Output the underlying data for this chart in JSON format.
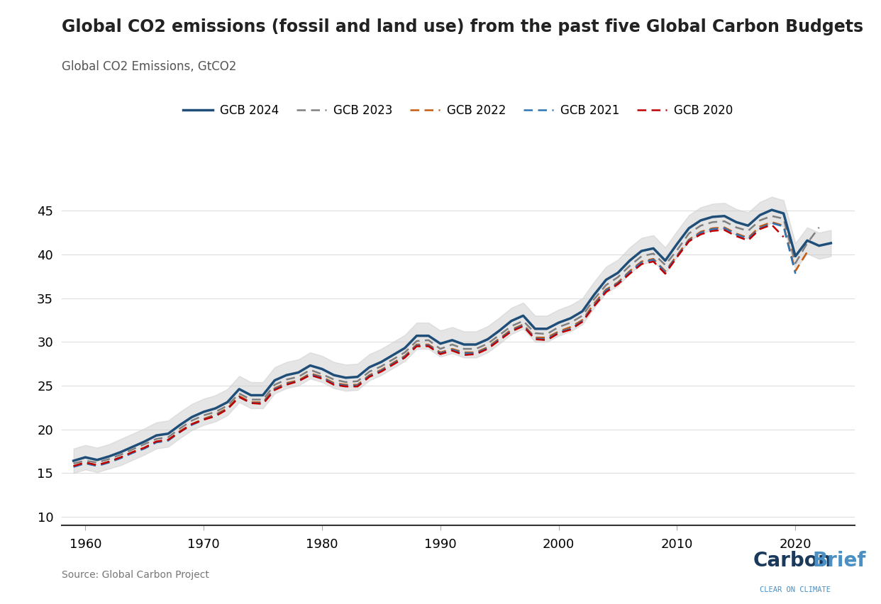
{
  "title": "Global CO2 emissions (fossil and land use) from the past five Global Carbon Budgets",
  "subtitle": "Global CO2 Emissions, GtCO2",
  "source": "Source: Global Carbon Project",
  "xlim": [
    1958,
    2025
  ],
  "ylim": [
    9,
    47
  ],
  "yticks": [
    10,
    15,
    20,
    25,
    30,
    35,
    40,
    45
  ],
  "xticks": [
    1960,
    1970,
    1980,
    1990,
    2000,
    2010,
    2020
  ],
  "background_color": "#ffffff",
  "gcb2024": {
    "label": "GCB 2024",
    "color": "#1f4e79",
    "linewidth": 2.5,
    "linestyle": "solid",
    "years": [
      1959,
      1960,
      1961,
      1962,
      1963,
      1964,
      1965,
      1966,
      1967,
      1968,
      1969,
      1970,
      1971,
      1972,
      1973,
      1974,
      1975,
      1976,
      1977,
      1978,
      1979,
      1980,
      1981,
      1982,
      1983,
      1984,
      1985,
      1986,
      1987,
      1988,
      1989,
      1990,
      1991,
      1992,
      1993,
      1994,
      1995,
      1996,
      1997,
      1998,
      1999,
      2000,
      2001,
      2002,
      2003,
      2004,
      2005,
      2006,
      2007,
      2008,
      2009,
      2010,
      2011,
      2012,
      2013,
      2014,
      2015,
      2016,
      2017,
      2018,
      2019,
      2020,
      2021,
      2022,
      2023
    ],
    "values": [
      16.4,
      16.8,
      16.5,
      16.9,
      17.4,
      18.0,
      18.6,
      19.3,
      19.5,
      20.5,
      21.4,
      22.0,
      22.4,
      23.1,
      24.6,
      23.9,
      23.9,
      25.6,
      26.2,
      26.5,
      27.3,
      26.9,
      26.2,
      25.9,
      26.0,
      27.1,
      27.7,
      28.5,
      29.3,
      30.7,
      30.7,
      29.8,
      30.2,
      29.7,
      29.7,
      30.3,
      31.3,
      32.4,
      33.0,
      31.5,
      31.5,
      32.2,
      32.7,
      33.5,
      35.4,
      37.1,
      37.9,
      39.3,
      40.4,
      40.7,
      39.3,
      41.2,
      43.0,
      43.9,
      44.3,
      44.4,
      43.7,
      43.3,
      44.5,
      45.1,
      44.7,
      39.8,
      41.6,
      41.0,
      41.3
    ],
    "upper": [
      17.8,
      18.2,
      17.9,
      18.3,
      18.9,
      19.5,
      20.1,
      20.8,
      21.0,
      22.0,
      22.9,
      23.5,
      23.9,
      24.6,
      26.1,
      25.4,
      25.4,
      27.1,
      27.7,
      28.0,
      28.8,
      28.4,
      27.7,
      27.4,
      27.5,
      28.6,
      29.2,
      30.0,
      30.8,
      32.2,
      32.2,
      31.3,
      31.7,
      31.2,
      31.2,
      31.8,
      32.8,
      33.9,
      34.5,
      33.0,
      33.0,
      33.7,
      34.2,
      35.0,
      36.9,
      38.6,
      39.4,
      40.8,
      41.9,
      42.2,
      40.8,
      42.7,
      44.5,
      45.4,
      45.8,
      45.9,
      45.2,
      44.8,
      46.0,
      46.6,
      46.2,
      41.3,
      43.1,
      42.5,
      42.8
    ],
    "lower": [
      15.0,
      15.4,
      15.1,
      15.5,
      15.9,
      16.5,
      17.1,
      17.8,
      18.0,
      19.0,
      19.9,
      20.5,
      20.9,
      21.6,
      23.1,
      22.4,
      22.4,
      24.1,
      24.7,
      25.0,
      25.8,
      25.4,
      24.7,
      24.4,
      24.5,
      25.6,
      26.2,
      27.0,
      27.8,
      29.2,
      29.2,
      28.3,
      28.7,
      28.2,
      28.2,
      28.8,
      29.8,
      30.9,
      31.5,
      30.0,
      30.0,
      30.7,
      31.2,
      32.0,
      33.9,
      35.6,
      36.4,
      37.8,
      38.9,
      39.2,
      37.8,
      39.7,
      41.5,
      42.4,
      42.8,
      42.9,
      42.2,
      41.8,
      43.0,
      43.6,
      43.2,
      38.3,
      40.1,
      39.5,
      39.8
    ]
  },
  "gcb2023": {
    "label": "GCB 2023",
    "color": "#808080",
    "linewidth": 1.8,
    "linestyle": "dashed",
    "years": [
      1959,
      1960,
      1961,
      1962,
      1963,
      1964,
      1965,
      1966,
      1967,
      1968,
      1969,
      1970,
      1971,
      1972,
      1973,
      1974,
      1975,
      1976,
      1977,
      1978,
      1979,
      1980,
      1981,
      1982,
      1983,
      1984,
      1985,
      1986,
      1987,
      1988,
      1989,
      1990,
      1991,
      1992,
      1993,
      1994,
      1995,
      1996,
      1997,
      1998,
      1999,
      2000,
      2001,
      2002,
      2003,
      2004,
      2005,
      2006,
      2007,
      2008,
      2009,
      2010,
      2011,
      2012,
      2013,
      2014,
      2015,
      2016,
      2017,
      2018,
      2019,
      2020,
      2021,
      2022
    ],
    "values": [
      16.1,
      16.4,
      16.2,
      16.6,
      17.1,
      17.7,
      18.3,
      18.9,
      19.1,
      20.1,
      21.0,
      21.6,
      22.0,
      22.7,
      24.1,
      23.4,
      23.4,
      25.1,
      25.7,
      26.0,
      26.8,
      26.3,
      25.7,
      25.4,
      25.5,
      26.6,
      27.2,
      28.0,
      28.8,
      30.1,
      30.2,
      29.2,
      29.7,
      29.2,
      29.2,
      29.8,
      30.8,
      31.8,
      32.4,
      31.0,
      30.9,
      31.7,
      32.2,
      33.0,
      34.9,
      36.5,
      37.4,
      38.7,
      39.8,
      40.1,
      38.8,
      40.5,
      42.4,
      43.3,
      43.7,
      43.8,
      43.1,
      42.7,
      43.9,
      44.4,
      44.1,
      39.0,
      41.3,
      43.1
    ]
  },
  "gcb2022": {
    "label": "GCB 2022",
    "color": "#c55a11",
    "linewidth": 1.8,
    "linestyle": "dashed",
    "years": [
      1959,
      1960,
      1961,
      1962,
      1963,
      1964,
      1965,
      1966,
      1967,
      1968,
      1969,
      1970,
      1971,
      1972,
      1973,
      1974,
      1975,
      1976,
      1977,
      1978,
      1979,
      1980,
      1981,
      1982,
      1983,
      1984,
      1985,
      1986,
      1987,
      1988,
      1989,
      1990,
      1991,
      1992,
      1993,
      1994,
      1995,
      1996,
      1997,
      1998,
      1999,
      2000,
      2001,
      2002,
      2003,
      2004,
      2005,
      2006,
      2007,
      2008,
      2009,
      2010,
      2011,
      2012,
      2013,
      2014,
      2015,
      2016,
      2017,
      2018,
      2019,
      2020,
      2021
    ],
    "values": [
      15.8,
      16.2,
      15.9,
      16.3,
      16.8,
      17.4,
      17.9,
      18.6,
      18.8,
      19.8,
      20.6,
      21.2,
      21.7,
      22.4,
      23.8,
      23.1,
      23.1,
      24.7,
      25.3,
      25.6,
      26.4,
      26.0,
      25.3,
      25.1,
      25.1,
      26.2,
      26.8,
      27.6,
      28.4,
      29.7,
      29.7,
      28.8,
      29.2,
      28.8,
      28.8,
      29.4,
      30.4,
      31.4,
      32.0,
      30.5,
      30.5,
      31.2,
      31.7,
      32.5,
      34.4,
      36.0,
      36.8,
      38.1,
      39.2,
      39.5,
      38.1,
      39.9,
      41.7,
      42.6,
      43.0,
      43.1,
      42.4,
      41.9,
      43.2,
      43.7,
      43.3,
      38.1,
      40.3
    ]
  },
  "gcb2021": {
    "label": "GCB 2021",
    "color": "#2e75b6",
    "linewidth": 1.8,
    "linestyle": "dashed",
    "years": [
      1959,
      1960,
      1961,
      1962,
      1963,
      1964,
      1965,
      1966,
      1967,
      1968,
      1969,
      1970,
      1971,
      1972,
      1973,
      1974,
      1975,
      1976,
      1977,
      1978,
      1979,
      1980,
      1981,
      1982,
      1983,
      1984,
      1985,
      1986,
      1987,
      1988,
      1989,
      1990,
      1991,
      1992,
      1993,
      1994,
      1995,
      1996,
      1997,
      1998,
      1999,
      2000,
      2001,
      2002,
      2003,
      2004,
      2005,
      2006,
      2007,
      2008,
      2009,
      2010,
      2011,
      2012,
      2013,
      2014,
      2015,
      2016,
      2017,
      2018,
      2019,
      2020
    ],
    "values": [
      15.7,
      16.1,
      15.8,
      16.2,
      16.7,
      17.3,
      17.8,
      18.5,
      18.7,
      19.7,
      20.5,
      21.1,
      21.6,
      22.3,
      23.7,
      23.0,
      23.0,
      24.6,
      25.2,
      25.5,
      26.3,
      25.9,
      25.2,
      25.0,
      25.0,
      26.1,
      26.7,
      27.5,
      28.3,
      29.6,
      29.6,
      28.7,
      29.1,
      28.7,
      28.7,
      29.3,
      30.3,
      31.3,
      31.9,
      30.4,
      30.3,
      31.1,
      31.5,
      32.4,
      34.2,
      35.9,
      36.7,
      38.0,
      39.1,
      39.4,
      38.0,
      39.8,
      41.6,
      42.5,
      42.9,
      43.0,
      42.3,
      41.8,
      43.0,
      43.6,
      43.2,
      37.8
    ]
  },
  "gcb2020": {
    "label": "GCB 2020",
    "color": "#c00000",
    "linewidth": 1.8,
    "linestyle": "dashed",
    "years": [
      1959,
      1960,
      1961,
      1962,
      1963,
      1964,
      1965,
      1966,
      1967,
      1968,
      1969,
      1970,
      1971,
      1972,
      1973,
      1974,
      1975,
      1976,
      1977,
      1978,
      1979,
      1980,
      1981,
      1982,
      1983,
      1984,
      1985,
      1986,
      1987,
      1988,
      1989,
      1990,
      1991,
      1992,
      1993,
      1994,
      1995,
      1996,
      1997,
      1998,
      1999,
      2000,
      2001,
      2002,
      2003,
      2004,
      2005,
      2006,
      2007,
      2008,
      2009,
      2010,
      2011,
      2012,
      2013,
      2014,
      2015,
      2016,
      2017,
      2018,
      2019
    ],
    "values": [
      15.8,
      16.2,
      15.9,
      16.3,
      16.8,
      17.4,
      17.9,
      18.6,
      18.8,
      19.7,
      20.6,
      21.1,
      21.5,
      22.3,
      23.7,
      23.0,
      22.9,
      24.5,
      25.1,
      25.5,
      26.2,
      25.8,
      25.1,
      24.9,
      24.9,
      26.0,
      26.6,
      27.4,
      28.2,
      29.5,
      29.5,
      28.6,
      29.0,
      28.5,
      28.6,
      29.2,
      30.2,
      31.2,
      31.8,
      30.3,
      30.2,
      31.0,
      31.4,
      32.3,
      34.1,
      35.7,
      36.6,
      37.8,
      38.9,
      39.2,
      37.8,
      39.7,
      41.5,
      42.3,
      42.7,
      42.8,
      42.1,
      41.6,
      42.9,
      43.4,
      42.0
    ]
  }
}
